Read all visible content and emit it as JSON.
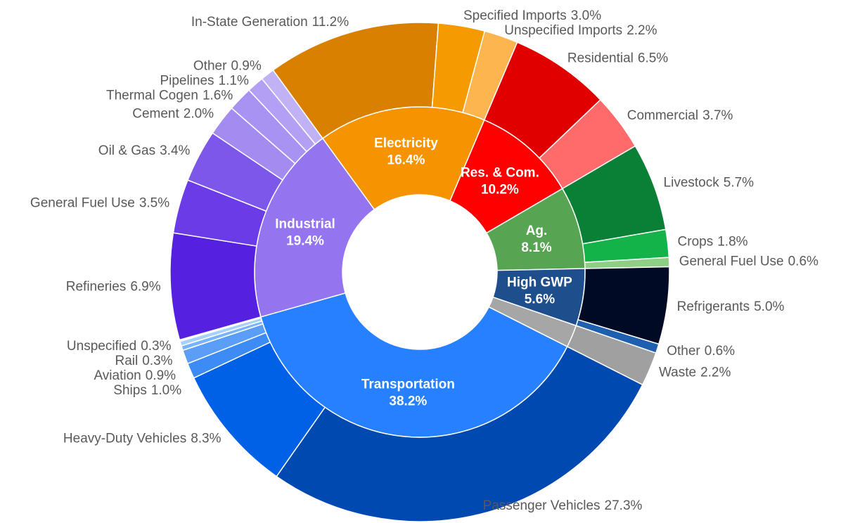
{
  "chart_data": {
    "type": "sunburst",
    "groups": [
      {
        "name": "Electricity",
        "value": 16.4,
        "value_label": "16.4%",
        "color": "#f59400",
        "children": [
          {
            "name": "In-State Generation",
            "value": 11.2,
            "value_label": "11.2%",
            "color": "#d98000"
          },
          {
            "name": "Specified Imports",
            "value": 3.0,
            "value_label": "3.0%",
            "color": "#f59a00"
          },
          {
            "name": "Unspecified Imports",
            "value": 2.2,
            "value_label": "2.2%",
            "color": "#fdb54f"
          }
        ]
      },
      {
        "name": "Res. & Com.",
        "value": 10.2,
        "value_label": "10.2%",
        "color": "#ff0000",
        "children": [
          {
            "name": "Residential",
            "value": 6.5,
            "value_label": "6.5%",
            "color": "#e00000"
          },
          {
            "name": "Commercial",
            "value": 3.7,
            "value_label": "3.7%",
            "color": "#ff6b6b"
          }
        ]
      },
      {
        "name": "Ag.",
        "value": 8.1,
        "value_label": "8.1%",
        "color": "#57a453",
        "children": [
          {
            "name": "Livestock",
            "value": 5.7,
            "value_label": "5.7%",
            "color": "#0a7f36"
          },
          {
            "name": "Crops",
            "value": 1.8,
            "value_label": "1.8%",
            "color": "#14b34a"
          },
          {
            "name": "General Fuel Use",
            "value": 0.6,
            "value_label": "0.6%",
            "color": "#8fcf85"
          }
        ]
      },
      {
        "name": "High GWP",
        "value": 5.6,
        "value_label": "5.6%",
        "color": "#1f4e8c",
        "children": [
          {
            "name": "Refrigerants",
            "value": 5.0,
            "value_label": "5.0%",
            "color": "#010a24"
          },
          {
            "name": "Other",
            "value": 0.6,
            "value_label": "0.6%",
            "color": "#1f5fb0"
          }
        ]
      },
      {
        "name": null,
        "value": 2.2,
        "value_label": null,
        "color": "#a6a6a6",
        "children": [
          {
            "name": "Waste",
            "value": 2.2,
            "value_label": "2.2%",
            "color": "#a0a0a0"
          }
        ]
      },
      {
        "name": "Transportation",
        "value": 38.2,
        "value_label": "38.2%",
        "color": "#2680ff",
        "children": [
          {
            "name": "Passenger Vehicles",
            "value": 27.3,
            "value_label": "27.3%",
            "color": "#0049b0"
          },
          {
            "name": "Heavy-Duty Vehicles",
            "value": 8.3,
            "value_label": "8.3%",
            "color": "#0060e6"
          },
          {
            "name": "Ships",
            "value": 1.0,
            "value_label": "1.0%",
            "color": "#3d8cf5"
          },
          {
            "name": "Aviation",
            "value": 0.9,
            "value_label": "0.9%",
            "color": "#5a9ef8"
          },
          {
            "name": "Rail",
            "value": 0.3,
            "value_label": "0.3%",
            "color": "#78b4fa"
          },
          {
            "name": "Unspecified",
            "value": 0.3,
            "value_label": "0.3%",
            "color": "#a8d0fc"
          }
        ]
      },
      {
        "name": "Industrial",
        "value": 19.4,
        "value_label": "19.4%",
        "color": "#9475ef",
        "children": [
          {
            "name": "Refineries",
            "value": 6.9,
            "value_label": "6.9%",
            "color": "#5520e0"
          },
          {
            "name": "General Fuel Use",
            "value": 3.5,
            "value_label": "3.5%",
            "color": "#6a3be6"
          },
          {
            "name": "Oil & Gas",
            "value": 3.4,
            "value_label": "3.4%",
            "color": "#7d56ea"
          },
          {
            "name": "Cement",
            "value": 2.0,
            "value_label": "2.0%",
            "color": "#a38bf0"
          },
          {
            "name": "Thermal Cogen",
            "value": 1.6,
            "value_label": "1.6%",
            "color": "#a993f2"
          },
          {
            "name": "Pipelines",
            "value": 1.1,
            "value_label": "1.1%",
            "color": "#b3a0f4"
          },
          {
            "name": "Other",
            "value": 0.9,
            "value_label": "0.9%",
            "color": "#c1b2f6"
          }
        ]
      }
    ]
  }
}
